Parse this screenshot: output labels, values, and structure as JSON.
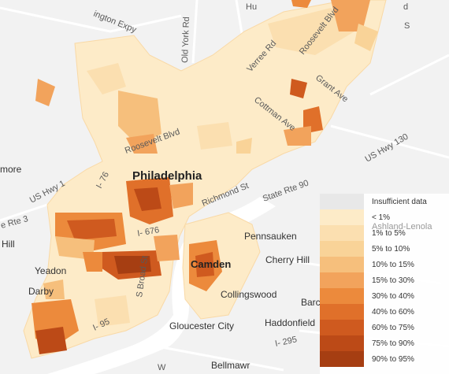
{
  "map": {
    "city_labels": {
      "philadelphia": "Philadelphia",
      "camden": "Camden"
    },
    "place_labels": {
      "pennsauken": "Pennsauken",
      "cherry_hill": "Cherry Hill",
      "yeadon": "Yeadon",
      "darby": "Darby",
      "collingswood": "Collingswood",
      "barclay": "Barcla",
      "haddonfield": "Haddonfield",
      "gloucester_city": "Gloucester City",
      "bellmawr": "Bellmawr",
      "more": "more",
      "hill": "Hill",
      "ashland": "Ashland-Lenola"
    },
    "road_labels": {
      "arlington_expy": "ington Expy",
      "old_york_rd": "Old York Rd",
      "verree_rd": "Verree Rd",
      "roosevelt_blvd_ne": "Roosevelt Blvd",
      "grant_ave": "Grant Ave",
      "cottman_ave": "Cottman Ave",
      "us_hwy_130": "US Hwy 130",
      "roosevelt_blvd": "Roosevelt Blvd",
      "i76": "I- 76",
      "richmond_st": "Richmond St",
      "state_rte_90": "State Rte 90",
      "us_hwy_1": "US Hwy 1",
      "rte3": "e Rte 3",
      "i676": "I- 676",
      "s_broad_st": "S Broad St",
      "i95": "I- 95",
      "i295": "I- 295",
      "hu": "Hu",
      "d": "d",
      "s": "S",
      "w": "W"
    }
  },
  "legend": {
    "items": [
      {
        "label": "Insufficient data",
        "color": "#e8e8e8"
      },
      {
        "label": "< 1%",
        "color": "#fdebc8"
      },
      {
        "label": "1% to 5%",
        "color": "#fbdfb0"
      },
      {
        "label": "5% to 10%",
        "color": "#f9d398"
      },
      {
        "label": "10% to 15%",
        "color": "#f6bf7c"
      },
      {
        "label": "15% to 30%",
        "color": "#f2a35c"
      },
      {
        "label": "30% to 40%",
        "color": "#ec8a3c"
      },
      {
        "label": "40% to 60%",
        "color": "#e0702a"
      },
      {
        "label": "60% to 75%",
        "color": "#cf5a1f"
      },
      {
        "label": "75% to 90%",
        "color": "#bc4a17"
      },
      {
        "label": "90% to 95%",
        "color": "#a63e12"
      }
    ]
  }
}
